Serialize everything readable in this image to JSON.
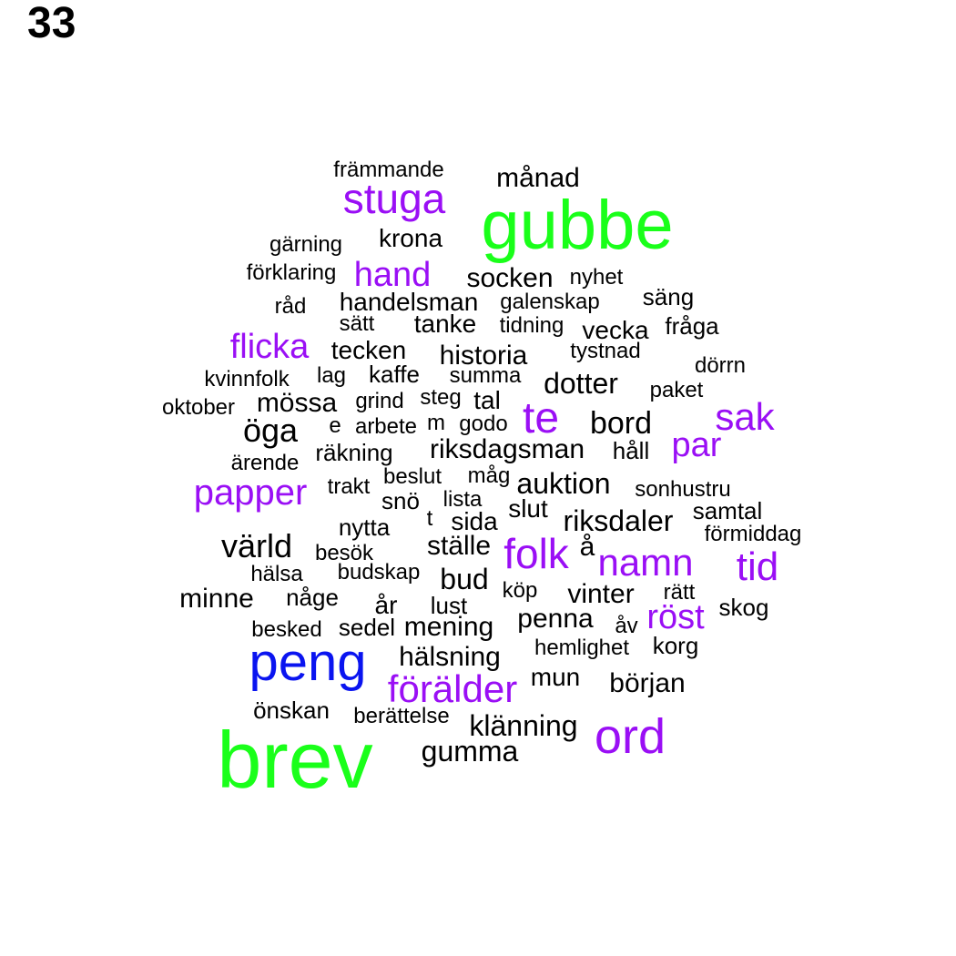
{
  "page_number": "33",
  "colors": {
    "large": "#1aff1a",
    "peng": "#0a14f0",
    "medium": "#9a0ff5",
    "small": "#000000"
  },
  "words": [
    {
      "text": "brev",
      "group": "large"
    },
    {
      "text": "gubbe",
      "group": "large"
    },
    {
      "text": "peng",
      "group": "peng"
    },
    {
      "text": "ord",
      "group": "medium"
    },
    {
      "text": "stuga",
      "group": "medium"
    },
    {
      "text": "te",
      "group": "medium"
    },
    {
      "text": "förälder",
      "group": "medium"
    },
    {
      "text": "namn",
      "group": "medium"
    },
    {
      "text": "folk",
      "group": "medium"
    },
    {
      "text": "tid",
      "group": "medium"
    },
    {
      "text": "sak",
      "group": "medium"
    },
    {
      "text": "papper",
      "group": "medium"
    },
    {
      "text": "flicka",
      "group": "medium"
    },
    {
      "text": "par",
      "group": "medium"
    },
    {
      "text": "röst",
      "group": "medium"
    },
    {
      "text": "hand",
      "group": "medium"
    },
    {
      "text": "månad",
      "group": "small"
    },
    {
      "text": "främmande",
      "group": "small"
    },
    {
      "text": "krona",
      "group": "small"
    },
    {
      "text": "gärning",
      "group": "small"
    },
    {
      "text": "förklaring",
      "group": "small"
    },
    {
      "text": "socken",
      "group": "small"
    },
    {
      "text": "nyhet",
      "group": "small"
    },
    {
      "text": "säng",
      "group": "small"
    },
    {
      "text": "råd",
      "group": "small"
    },
    {
      "text": "handelsman",
      "group": "small"
    },
    {
      "text": "galenskap",
      "group": "small"
    },
    {
      "text": "sätt",
      "group": "small"
    },
    {
      "text": "tanke",
      "group": "small"
    },
    {
      "text": "tidning",
      "group": "small"
    },
    {
      "text": "vecka",
      "group": "small"
    },
    {
      "text": "fråga",
      "group": "small"
    },
    {
      "text": "tecken",
      "group": "small"
    },
    {
      "text": "historia",
      "group": "small"
    },
    {
      "text": "tystnad",
      "group": "small"
    },
    {
      "text": "dörrn",
      "group": "small"
    },
    {
      "text": "kvinnfolk",
      "group": "small"
    },
    {
      "text": "lag",
      "group": "small"
    },
    {
      "text": "kaffe",
      "group": "small"
    },
    {
      "text": "summa",
      "group": "small"
    },
    {
      "text": "dotter",
      "group": "small"
    },
    {
      "text": "paket",
      "group": "small"
    },
    {
      "text": "oktober",
      "group": "small"
    },
    {
      "text": "mössa",
      "group": "small"
    },
    {
      "text": "grind",
      "group": "small"
    },
    {
      "text": "steg",
      "group": "small"
    },
    {
      "text": "tal",
      "group": "small"
    },
    {
      "text": "öga",
      "group": "small"
    },
    {
      "text": "e",
      "group": "small"
    },
    {
      "text": "arbete",
      "group": "small"
    },
    {
      "text": "m",
      "group": "small"
    },
    {
      "text": "godo",
      "group": "small"
    },
    {
      "text": "bord",
      "group": "small"
    },
    {
      "text": "räkning",
      "group": "small"
    },
    {
      "text": "riksdagsman",
      "group": "small"
    },
    {
      "text": "håll",
      "group": "small"
    },
    {
      "text": "ärende",
      "group": "small"
    },
    {
      "text": "beslut",
      "group": "small"
    },
    {
      "text": "måg",
      "group": "small"
    },
    {
      "text": "auktion",
      "group": "small"
    },
    {
      "text": "trakt",
      "group": "small"
    },
    {
      "text": "snö",
      "group": "small"
    },
    {
      "text": "lista",
      "group": "small"
    },
    {
      "text": "sonhustru",
      "group": "small"
    },
    {
      "text": "slut",
      "group": "small"
    },
    {
      "text": "samtal",
      "group": "small"
    },
    {
      "text": "nytta",
      "group": "small"
    },
    {
      "text": "t",
      "group": "small"
    },
    {
      "text": "sida",
      "group": "small"
    },
    {
      "text": "riksdaler",
      "group": "small"
    },
    {
      "text": "förmiddag",
      "group": "small"
    },
    {
      "text": "värld",
      "group": "small"
    },
    {
      "text": "besök",
      "group": "small"
    },
    {
      "text": "ställe",
      "group": "small"
    },
    {
      "text": "å",
      "group": "small"
    },
    {
      "text": "hälsa",
      "group": "small"
    },
    {
      "text": "budskap",
      "group": "small"
    },
    {
      "text": "bud",
      "group": "small"
    },
    {
      "text": "minne",
      "group": "small"
    },
    {
      "text": "någe",
      "group": "small"
    },
    {
      "text": "köp",
      "group": "small"
    },
    {
      "text": "vinter",
      "group": "small"
    },
    {
      "text": "rätt",
      "group": "small"
    },
    {
      "text": "år",
      "group": "small"
    },
    {
      "text": "lust",
      "group": "small"
    },
    {
      "text": "skog",
      "group": "small"
    },
    {
      "text": "penna",
      "group": "small"
    },
    {
      "text": "besked",
      "group": "small"
    },
    {
      "text": "sedel",
      "group": "small"
    },
    {
      "text": "mening",
      "group": "small"
    },
    {
      "text": "åv",
      "group": "small"
    },
    {
      "text": "hemlighet",
      "group": "small"
    },
    {
      "text": "korg",
      "group": "small"
    },
    {
      "text": "hälsning",
      "group": "small"
    },
    {
      "text": "mun",
      "group": "small"
    },
    {
      "text": "början",
      "group": "small"
    },
    {
      "text": "önskan",
      "group": "small"
    },
    {
      "text": "berättelse",
      "group": "small"
    },
    {
      "text": "klänning",
      "group": "small"
    },
    {
      "text": "gumma",
      "group": "small"
    }
  ]
}
